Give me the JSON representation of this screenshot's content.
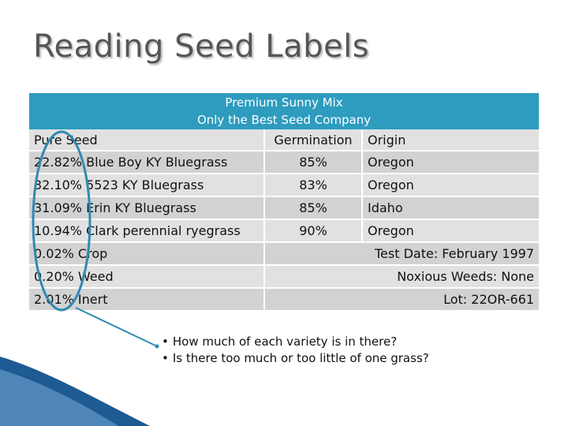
{
  "slide": {
    "title": "Reading Seed Labels"
  },
  "label": {
    "header_line1": "Premium Sunny Mix",
    "header_line2": "Only the Best Seed Company",
    "columns": [
      "Pure Seed",
      "Germination",
      "Origin"
    ],
    "rows": [
      {
        "seed": "22.82% Blue Boy KY Bluegrass",
        "germination": "85%",
        "origin": "Oregon"
      },
      {
        "seed": "32.10% 5523 KY Bluegrass",
        "germination": "83%",
        "origin": "Oregon"
      },
      {
        "seed": "31.09% Erin KY Bluegrass",
        "germination": "85%",
        "origin": "Idaho"
      },
      {
        "seed": "10.94% Clark perennial ryegrass",
        "germination": "90%",
        "origin": "Oregon"
      }
    ],
    "extra_rows": [
      {
        "left": "0.02% Crop",
        "right": "Test Date: February 1997"
      },
      {
        "left": "0.20% Weed",
        "right": "Noxious Weeds: None"
      },
      {
        "left": "2.01% Inert",
        "right": "Lot: 22OR-661"
      }
    ]
  },
  "notes": {
    "bullet_symbol": "•",
    "items": [
      "How much of each variety is in there?",
      "Is there too much or too little of one grass?"
    ]
  },
  "colors": {
    "header_bg": "#2e9cbe",
    "annotation": "#2f8ab3",
    "corner_wave": "#1e5a93"
  }
}
